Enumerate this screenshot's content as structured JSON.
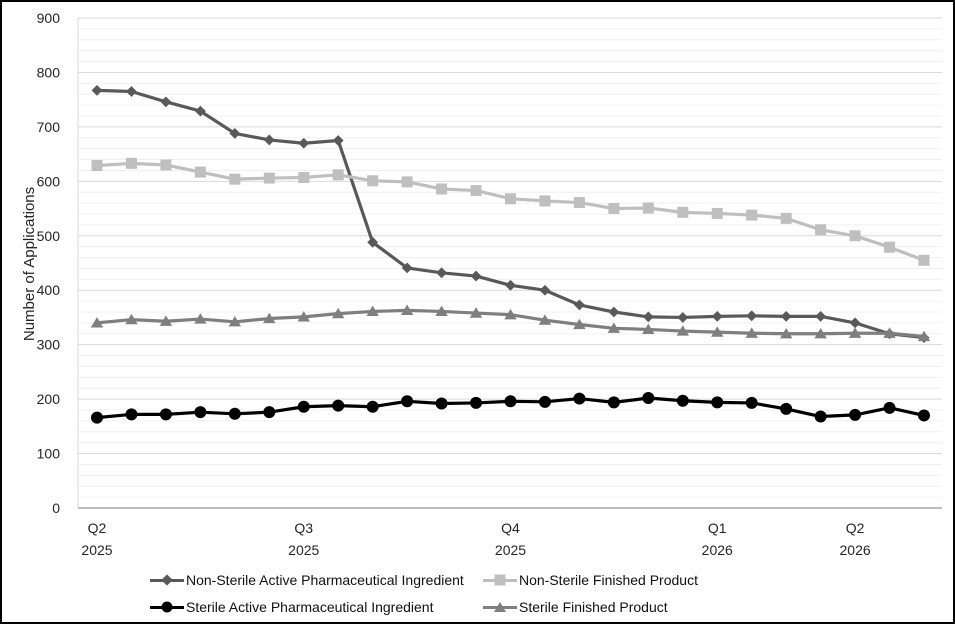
{
  "page": {
    "background": "#ffffff",
    "border_color": "#000000"
  },
  "chart_data": {
    "type": "line",
    "title": "",
    "xlabel": "",
    "ylabel": "Number of Applications",
    "ylim": [
      0,
      900
    ],
    "y_major_step": 100,
    "y_minor_step": 20,
    "y_tick_labels": [
      "0",
      "100",
      "200",
      "300",
      "400",
      "500",
      "600",
      "700",
      "800",
      "900"
    ],
    "grid": "horizontal, minor every 20, major every 100",
    "legend_position": "bottom",
    "x_point_count": 25,
    "x_tick_positions": [
      0,
      6,
      12,
      18,
      22
    ],
    "x_tick_labels": [
      [
        "Q2",
        "2025"
      ],
      [
        "Q3",
        "2025"
      ],
      [
        "Q4",
        "2025"
      ],
      [
        "Q1",
        "2026"
      ],
      [
        "Q2",
        "2026"
      ]
    ],
    "colors": {
      "axis_line": "#a6a6a6",
      "major_grid": "#d9d9d9",
      "minor_grid": "#f0f0f0",
      "tick_text": "#262626"
    },
    "series": [
      {
        "name": "Non-Sterile Active Pharmaceutical Ingredient",
        "marker": "diamond",
        "color": "#595959",
        "values": [
          767,
          765,
          746,
          729,
          688,
          676,
          670,
          675,
          488,
          441,
          432,
          426,
          409,
          400,
          373,
          360,
          351,
          350,
          352,
          353,
          352,
          352,
          340,
          320,
          313
        ]
      },
      {
        "name": "Non-Sterile Finished Product",
        "marker": "square",
        "color": "#BFBFBF",
        "values": [
          629,
          633,
          630,
          617,
          604,
          606,
          607,
          612,
          601,
          599,
          586,
          583,
          568,
          564,
          561,
          550,
          551,
          543,
          541,
          538,
          532,
          511,
          500,
          479,
          455
        ]
      },
      {
        "name": "Sterile Active Pharmaceutical Ingredient",
        "marker": "circle",
        "color": "#000000",
        "values": [
          166,
          172,
          172,
          176,
          173,
          176,
          186,
          188,
          186,
          196,
          192,
          193,
          196,
          195,
          201,
          194,
          202,
          197,
          194,
          193,
          182,
          168,
          171,
          184,
          170
        ]
      },
      {
        "name": "Sterile Finished Product",
        "marker": "triangle",
        "color": "#7F7F7F",
        "values": [
          340,
          346,
          343,
          347,
          342,
          348,
          351,
          357,
          361,
          363,
          361,
          358,
          355,
          345,
          337,
          330,
          328,
          325,
          323,
          321,
          320,
          320,
          321,
          321,
          315
        ]
      }
    ]
  }
}
